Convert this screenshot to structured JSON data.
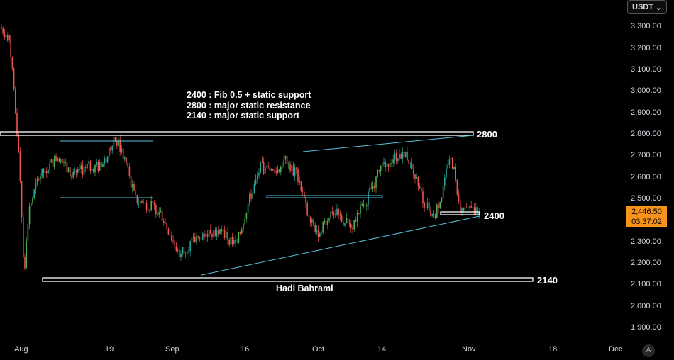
{
  "toolbar": {
    "currency": "USDT",
    "chevron": "⌄",
    "auto_label": "A"
  },
  "price_axis": {
    "labels": [
      "3,300.00",
      "3,200.00",
      "3,100.00",
      "3,000.00",
      "2,900.00",
      "2,800.00",
      "2,700.00",
      "2,600.00",
      "2,500.00",
      "2,400.00",
      "2,300.00",
      "2,200.00",
      "2,100.00",
      "2,000.00",
      "1,900.00"
    ],
    "values": [
      3300,
      3200,
      3100,
      3000,
      2900,
      2800,
      2700,
      2600,
      2500,
      2400,
      2300,
      2200,
      2100,
      2000,
      1900
    ]
  },
  "time_axis": {
    "labels": [
      "Aug",
      "19",
      "Sep",
      "16",
      "Oct",
      "14",
      "Nov",
      "18",
      "Dec"
    ]
  },
  "current": {
    "price": "2,446.50",
    "countdown": "03:37:02"
  },
  "notes": {
    "line1": "2400 : Fib 0.5 + static support",
    "line2": "2800 : major static resistance",
    "line3": "2140 : major static support"
  },
  "levels": {
    "resistance": "2800",
    "support_mid": "2400",
    "support_low": "2140"
  },
  "author": "Hadi Bahrami",
  "colors": {
    "up": "#26a69a",
    "down": "#ef5350",
    "up_green": "#4caf50",
    "line": "#5bc0de",
    "accent": "#f7931a"
  },
  "chart_data": {
    "type": "candlestick",
    "series_note": "",
    "close_path": [
      {
        "x": "2024-07-31",
        "y": 3300
      },
      {
        "x": "2024-08-02",
        "y": 3250
      },
      {
        "x": "2024-08-03",
        "y": 2950
      },
      {
        "x": "2024-08-04",
        "y": 2700
      },
      {
        "x": "2024-08-05",
        "y": 2150
      },
      {
        "x": "2024-08-06",
        "y": 2450
      },
      {
        "x": "2024-08-08",
        "y": 2600
      },
      {
        "x": "2024-08-10",
        "y": 2650
      },
      {
        "x": "2024-08-12",
        "y": 2700
      },
      {
        "x": "2024-08-15",
        "y": 2600
      },
      {
        "x": "2024-08-18",
        "y": 2650
      },
      {
        "x": "2024-08-21",
        "y": 2650
      },
      {
        "x": "2024-08-24",
        "y": 2780
      },
      {
        "x": "2024-08-26",
        "y": 2680
      },
      {
        "x": "2024-08-28",
        "y": 2500
      },
      {
        "x": "2024-09-02",
        "y": 2450
      },
      {
        "x": "2024-09-06",
        "y": 2250
      },
      {
        "x": "2024-09-09",
        "y": 2300
      },
      {
        "x": "2024-09-12",
        "y": 2350
      },
      {
        "x": "2024-09-15",
        "y": 2350
      },
      {
        "x": "2024-09-18",
        "y": 2280
      },
      {
        "x": "2024-09-20",
        "y": 2450
      },
      {
        "x": "2024-09-23",
        "y": 2650
      },
      {
        "x": "2024-09-26",
        "y": 2620
      },
      {
        "x": "2024-09-28",
        "y": 2680
      },
      {
        "x": "2024-10-01",
        "y": 2600
      },
      {
        "x": "2024-10-03",
        "y": 2400
      },
      {
        "x": "2024-10-05",
        "y": 2350
      },
      {
        "x": "2024-10-08",
        "y": 2450
      },
      {
        "x": "2024-10-10",
        "y": 2400
      },
      {
        "x": "2024-10-12",
        "y": 2380
      },
      {
        "x": "2024-10-15",
        "y": 2500
      },
      {
        "x": "2024-10-18",
        "y": 2650
      },
      {
        "x": "2024-10-21",
        "y": 2700
      },
      {
        "x": "2024-10-23",
        "y": 2720
      },
      {
        "x": "2024-10-25",
        "y": 2600
      },
      {
        "x": "2024-10-27",
        "y": 2480
      },
      {
        "x": "2024-10-29",
        "y": 2420
      },
      {
        "x": "2024-10-31",
        "y": 2550
      },
      {
        "x": "2024-11-01",
        "y": 2700
      },
      {
        "x": "2024-11-02",
        "y": 2650
      },
      {
        "x": "2024-11-03",
        "y": 2480
      },
      {
        "x": "2024-11-04",
        "y": 2446.5
      }
    ],
    "horizontal_levels": [
      2800,
      2400,
      2140
    ],
    "trendlines": [
      {
        "from": {
          "x": "2024-09-06",
          "y": 2150
        },
        "to": {
          "x": "2024-11-04",
          "y": 2420
        }
      },
      {
        "from": {
          "x": "2024-09-27",
          "y": 2720
        },
        "to": {
          "x": "2024-11-04",
          "y": 2800
        }
      },
      {
        "from": {
          "x": "2024-08-08",
          "y": 2505
        },
        "to": {
          "x": "2024-08-28",
          "y": 2505
        }
      },
      {
        "from": {
          "x": "2024-08-08",
          "y": 2770
        },
        "to": {
          "x": "2024-08-27",
          "y": 2770
        }
      },
      {
        "from": {
          "x": "2024-09-20",
          "y": 2505
        },
        "to": {
          "x": "2024-10-14",
          "y": 2505
        }
      }
    ],
    "ylim": [
      1850,
      3350
    ],
    "xlim": [
      "2024-07-31",
      "2024-12-05"
    ]
  }
}
